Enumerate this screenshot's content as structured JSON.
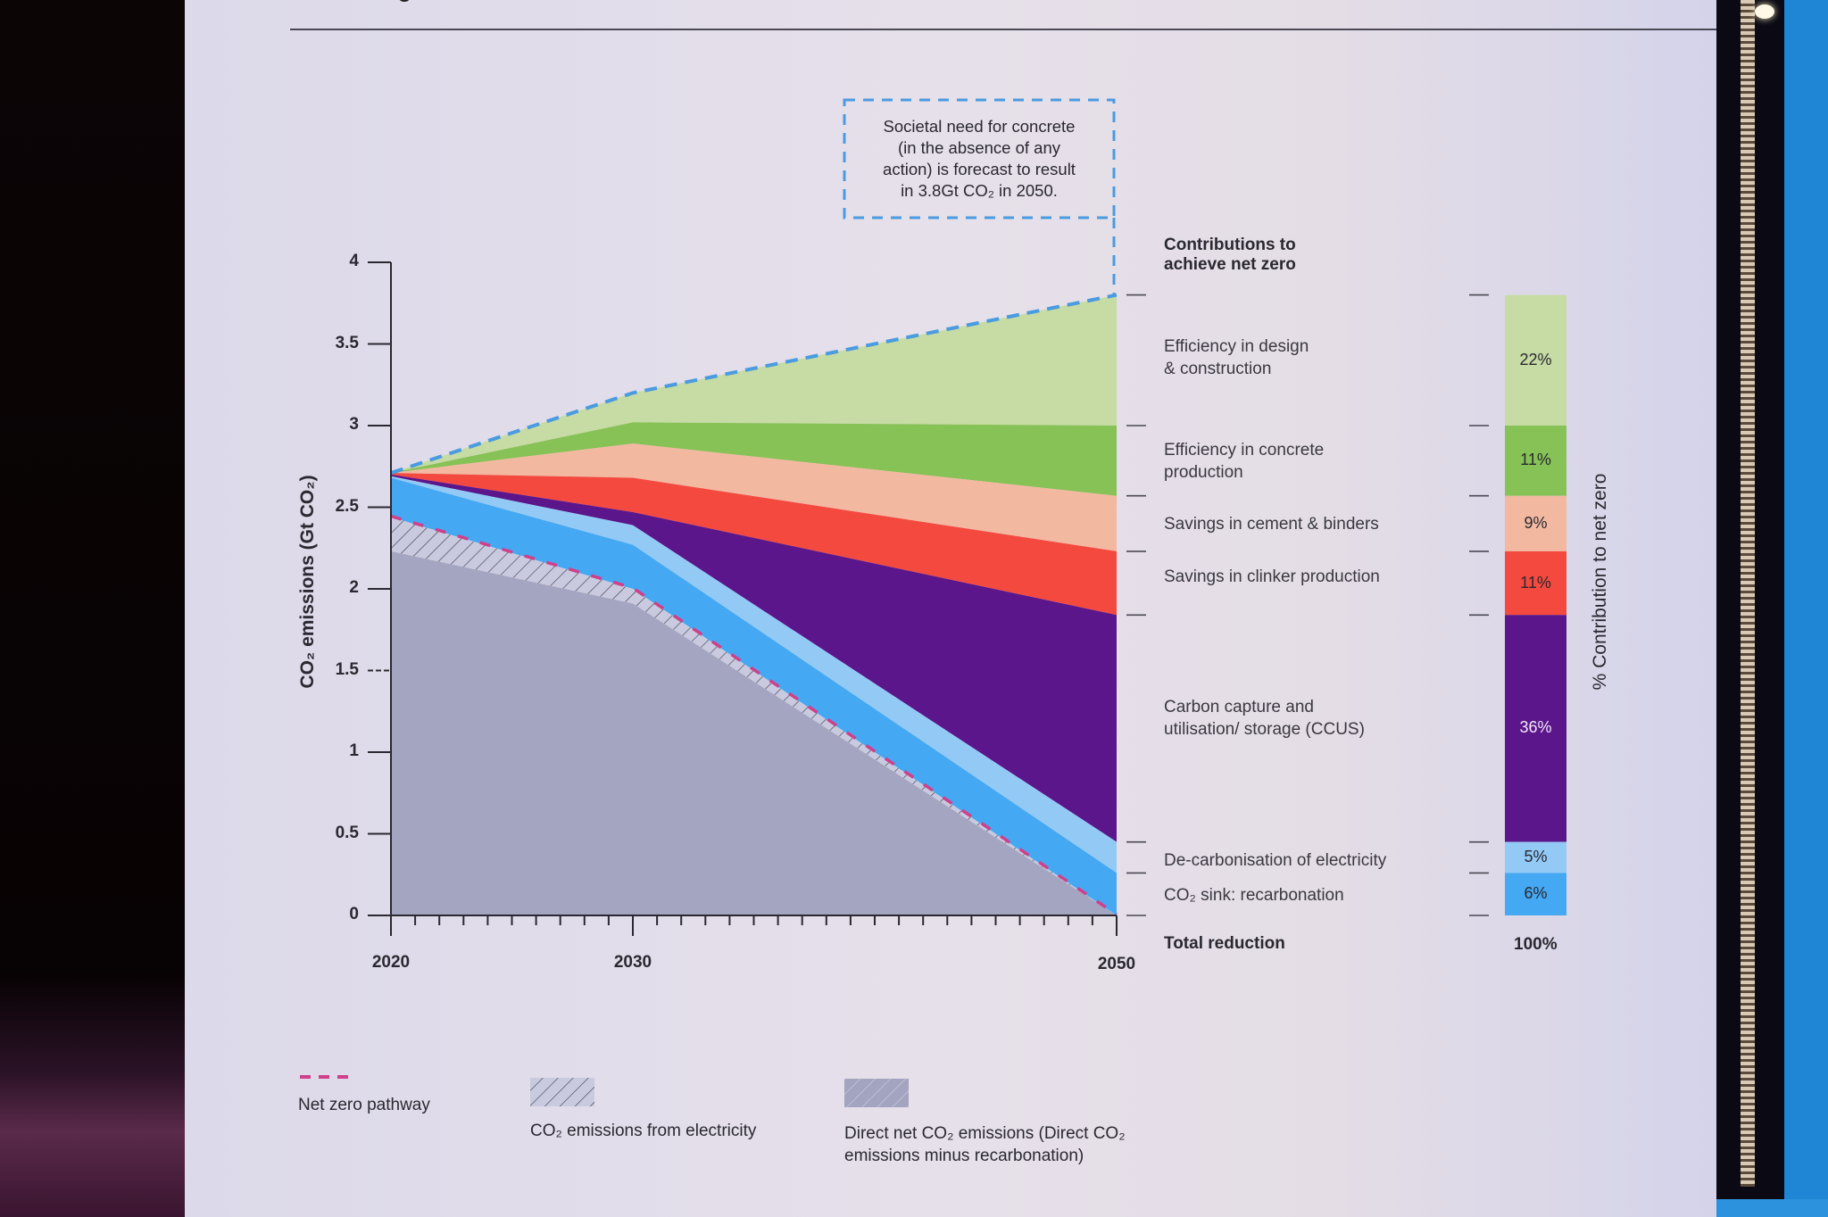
{
  "chart_data": {
    "type": "area",
    "title": "",
    "xlabel": "",
    "ylabel": "CO₂ emissions (Gt CO₂)",
    "xlim": [
      2020,
      2050
    ],
    "ylim": [
      0,
      4
    ],
    "x": [
      2020,
      2030,
      2050
    ],
    "x_tick_labels": [
      "2020",
      "2030",
      "2050"
    ],
    "y_ticks": [
      0,
      0.5,
      1,
      1.5,
      2,
      2.5,
      3,
      3.5,
      4
    ],
    "y_tick_labels": [
      "0",
      "0.5",
      "1",
      "1.5",
      "2",
      "2.5",
      "3",
      "3.5",
      "4"
    ],
    "societal_need_line": {
      "name": "Societal need (no action)",
      "values": [
        2.71,
        3.2,
        3.8
      ],
      "color": "#4a9be0"
    },
    "net_zero_pathway": {
      "name": "Net zero pathway",
      "values": [
        2.44,
        2.0,
        0.0
      ],
      "color": "#d0408a"
    },
    "stack_boundaries_note": "Each contribution band lies between lower and upper values (Gt CO₂)",
    "series": [
      {
        "name": "Efficiency in design & construction",
        "lower": [
          2.71,
          3.02,
          3.0
        ],
        "upper": [
          2.71,
          3.2,
          3.8
        ],
        "color": "#c7dba4",
        "percent": "22%"
      },
      {
        "name": "Efficiency in concrete production",
        "lower": [
          2.71,
          2.89,
          2.57
        ],
        "upper": [
          2.71,
          3.02,
          3.0
        ],
        "color": "#86c255",
        "percent": "11%"
      },
      {
        "name": "Savings in cement & binders",
        "lower": [
          2.71,
          2.68,
          2.23
        ],
        "upper": [
          2.71,
          2.89,
          2.57
        ],
        "color": "#f2b8a0",
        "percent": "9%"
      },
      {
        "name": "Savings in clinker production",
        "lower": [
          2.7,
          2.47,
          1.84
        ],
        "upper": [
          2.71,
          2.68,
          2.23
        ],
        "color": "#f4493f",
        "percent": "11%"
      },
      {
        "name": "Carbon capture and utilisation/ storage (CCUS)",
        "lower": [
          2.69,
          2.39,
          0.45
        ],
        "upper": [
          2.7,
          2.47,
          1.84
        ],
        "color": "#5a168a",
        "percent": "36%"
      },
      {
        "name": "De-carbonisation of electricity",
        "lower": [
          2.68,
          2.27,
          0.26
        ],
        "upper": [
          2.69,
          2.39,
          0.45
        ],
        "color": "#93caf5",
        "percent": "5%"
      },
      {
        "name": "CO₂ sink: recarbonation",
        "lower": [
          2.44,
          2.0,
          0.0
        ],
        "upper": [
          2.68,
          2.27,
          0.26
        ],
        "color": "#44a8f2",
        "percent": "6%"
      },
      {
        "name": "CO₂ emissions from electricity",
        "lower": [
          2.23,
          1.91,
          0.0
        ],
        "upper": [
          2.44,
          2.0,
          0.0
        ],
        "color": "#c5c6dc",
        "pattern": "hatch"
      },
      {
        "name": "Direct net CO₂ emissions",
        "lower": [
          0,
          0,
          0
        ],
        "upper": [
          2.23,
          1.91,
          0.0
        ],
        "color": "#a4a5c0"
      }
    ]
  },
  "callout": {
    "lines": [
      "Societal need for concrete",
      "(in the absence of any",
      "action) is forecast to result",
      "in 3.8Gt CO₂ in 2050."
    ]
  },
  "contributions": {
    "heading_line1": "Contributions to",
    "heading_line2": "achieve net zero",
    "items": [
      {
        "line1": "Efficiency in design",
        "line2": "& construction",
        "percent": "22%"
      },
      {
        "line1": "Efficiency in concrete",
        "line2": "production",
        "percent": "11%"
      },
      {
        "line1": "Savings in cement & binders",
        "line2": "",
        "percent": "9%"
      },
      {
        "line1": "Savings in clinker production",
        "line2": "",
        "percent": "11%"
      },
      {
        "line1": "Carbon capture and",
        "line2": "utilisation/ storage (CCUS)",
        "percent": "36%"
      },
      {
        "line1": "De-carbonisation of electricity",
        "line2": "",
        "percent": "5%"
      },
      {
        "line1": "CO₂ sink: recarbonation",
        "line2": "",
        "percent": "6%"
      }
    ],
    "total_label": "Total reduction",
    "total_value": "100%",
    "bar_axis_label": "% Contribution to net zero"
  },
  "legend": {
    "net_zero": "Net zero pathway",
    "electricity": "CO₂ emissions from electricity",
    "direct_line1": "Direct net CO₂ emissions (Direct CO₂",
    "direct_line2": "emissions minus recarbonation)"
  },
  "colors": {
    "dashed_need": "#4a9be0",
    "net_zero": "#d0408a",
    "axis": "#2a2830"
  }
}
